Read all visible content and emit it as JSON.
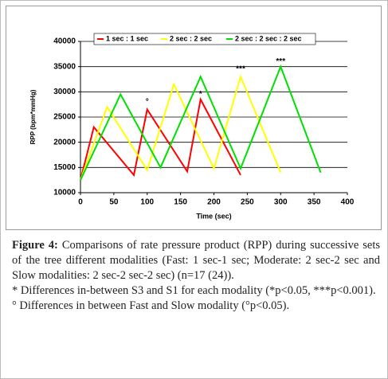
{
  "chart_data": {
    "type": "line",
    "xlabel": "Time (sec)",
    "ylabel": "RPP (bpm*mmHg)",
    "xlim": [
      0,
      400
    ],
    "xticks": [
      0,
      50,
      100,
      150,
      200,
      250,
      300,
      350,
      400
    ],
    "ylim": [
      10000,
      40000
    ],
    "yticks": [
      10000,
      15000,
      20000,
      25000,
      30000,
      35000,
      40000
    ],
    "grid": true,
    "legend": "top",
    "series": [
      {
        "name": "1 sec : 1 sec",
        "color": "#ff0000",
        "x": [
          0,
          20,
          80,
          100,
          160,
          180,
          240
        ],
        "values": [
          12500,
          23000,
          13500,
          26500,
          14200,
          28500,
          13500
        ]
      },
      {
        "name": "2 sec : 2 sec",
        "color": "#ffff00",
        "x": [
          0,
          40,
          100,
          140,
          200,
          240,
          300
        ],
        "values": [
          12500,
          27000,
          14500,
          31500,
          14800,
          33000,
          14000
        ]
      },
      {
        "name": "2 sec : 2 sec : 2 sec",
        "color": "#00e000",
        "x": [
          0,
          60,
          120,
          180,
          240,
          300,
          360
        ],
        "values": [
          12500,
          29500,
          15000,
          33000,
          14800,
          35000,
          14000
        ]
      }
    ],
    "annotations": [
      {
        "text": "°",
        "x": 100,
        "y": 28000
      },
      {
        "text": "*",
        "x": 180,
        "y": 29500
      },
      {
        "text": "***",
        "x": 240,
        "y": 34500
      },
      {
        "text": "***",
        "x": 300,
        "y": 36000
      }
    ]
  },
  "caption": {
    "label": "Figure 4:",
    "text": "Comparisons of rate pressure product (RPP) during successive sets of the tree different modalities (Fast: 1 sec-1 sec; Moderate: 2 sec-2 sec and Slow modalities: 2 sec-2 sec-2 sec) (n=17 (24)).",
    "notes": [
      "* Differences in-between S3 and S1 for each modality (*p<0.05, ***p<0.001).",
      "° Differences in between Fast and Slow modality (°p<0.05)."
    ]
  }
}
